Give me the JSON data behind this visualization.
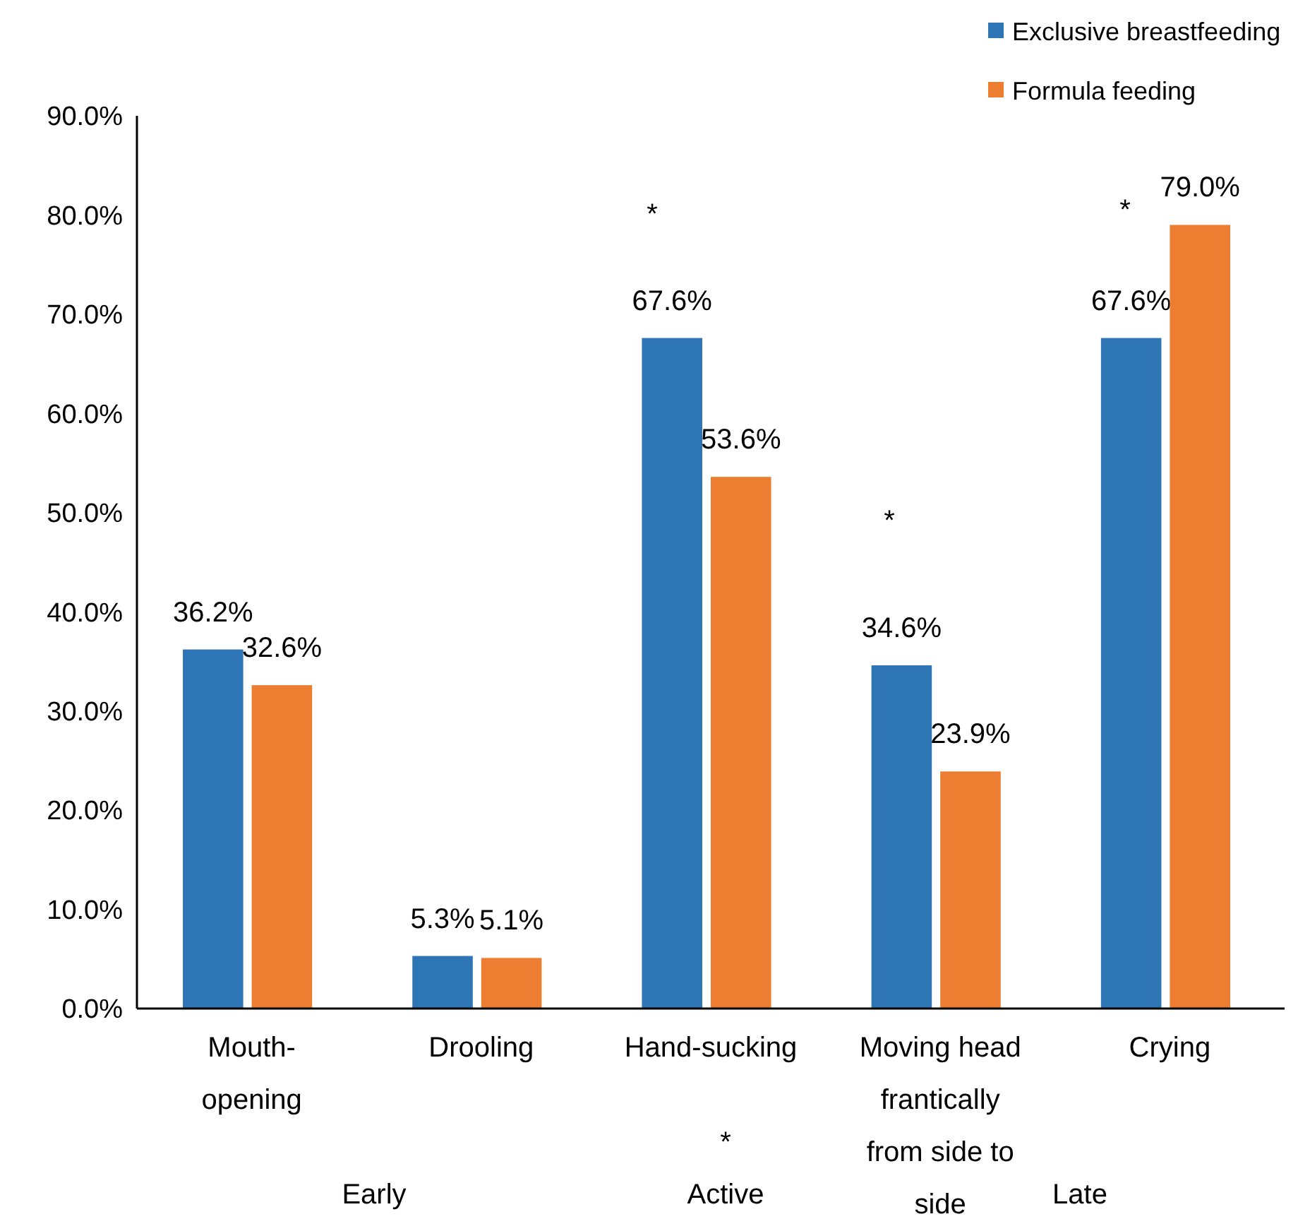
{
  "chart_data": {
    "type": "bar",
    "categories": [
      "Mouth-opening",
      "Drooling",
      "Hand-sucking",
      "Moving head frantically from side to side",
      "Crying"
    ],
    "series": [
      {
        "name": "Exclusive breastfeeding",
        "color": "#2e75b6",
        "values": [
          36.2,
          5.3,
          67.6,
          34.6,
          67.6
        ],
        "value_labels": [
          "36.2%",
          "5.3%",
          "67.6%",
          "34.6%",
          "67.6%"
        ]
      },
      {
        "name": "Formula feeding",
        "color": "#ed7d31",
        "values": [
          32.6,
          5.1,
          53.6,
          23.9,
          79.0
        ],
        "value_labels": [
          "32.6%",
          "5.1%",
          "53.6%",
          "23.9%",
          "79.0%"
        ]
      }
    ],
    "ylim": [
      0,
      90
    ],
    "yticks": [
      {
        "value": 0,
        "label": "0.0%"
      },
      {
        "value": 10,
        "label": "10.0%"
      },
      {
        "value": 20,
        "label": "20.0%"
      },
      {
        "value": 30,
        "label": "30.0%"
      },
      {
        "value": 40,
        "label": "40.0%"
      },
      {
        "value": 50,
        "label": "50.0%"
      },
      {
        "value": 60,
        "label": "60.0%"
      },
      {
        "value": 70,
        "label": "70.0%"
      },
      {
        "value": 80,
        "label": "80.0%"
      },
      {
        "value": 90,
        "label": "90.0%"
      }
    ],
    "grid": false,
    "legend": "top right",
    "annotations": [
      "*",
      "*",
      "*",
      "*",
      "Early",
      "Active",
      "Late"
    ]
  }
}
